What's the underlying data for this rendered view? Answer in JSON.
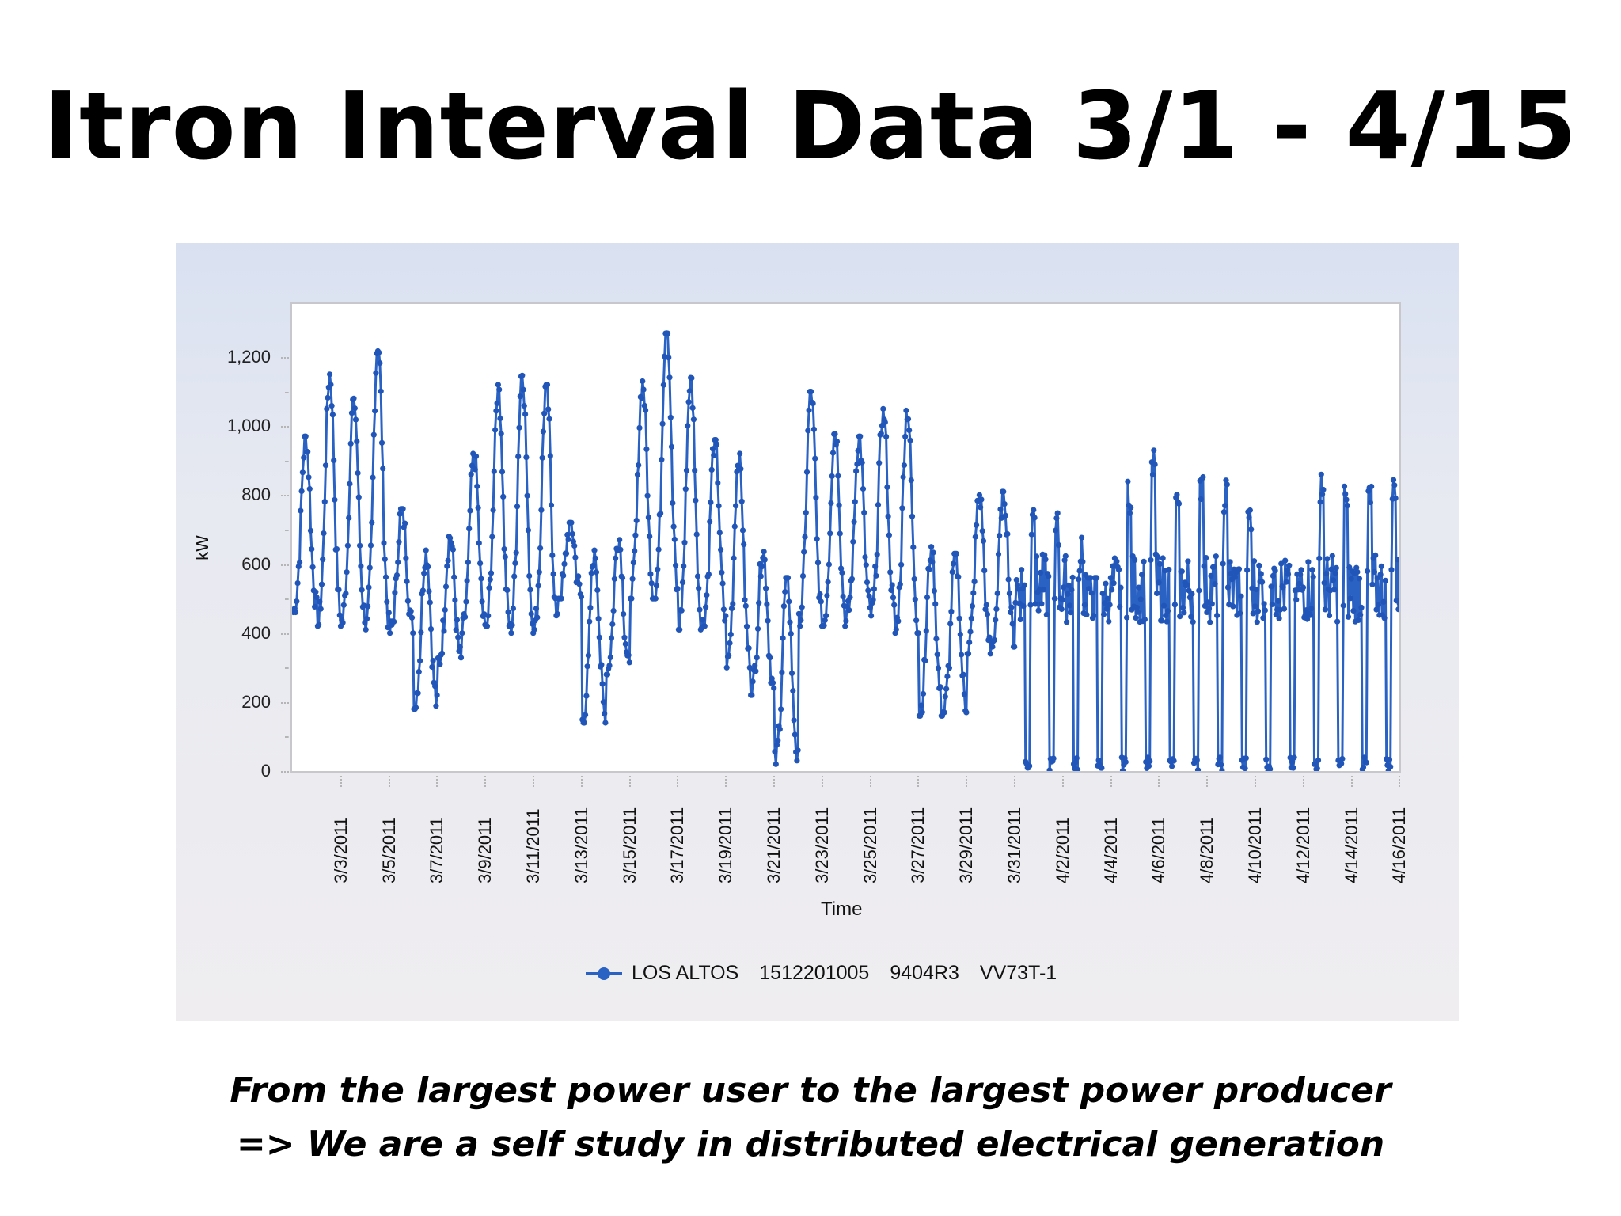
{
  "slide": {
    "title": "Itron Interval Data 3/1 - 4/15",
    "caption_line1": "From the largest power user to the largest power producer",
    "caption_line2": "=>  We are a self study in distributed electrical generation"
  },
  "colors": {
    "series": "#2a62c4",
    "plot_border": "#c8c8cc",
    "panel_top": "#d9e1f1",
    "panel_bottom": "#efedf0"
  },
  "chart_data": {
    "type": "line",
    "title": "",
    "xlabel": "Time",
    "ylabel": "kW",
    "ylim": [
      0,
      1350
    ],
    "yticks": [
      0,
      200,
      400,
      600,
      800,
      1000,
      1200
    ],
    "ytick_labels": [
      "0",
      "200",
      "400",
      "600",
      "800",
      "1,000",
      "1,200"
    ],
    "xtick_labels": [
      "3/3/2011",
      "3/5/2011",
      "3/7/2011",
      "3/9/2011",
      "3/11/2011",
      "3/13/2011",
      "3/15/2011",
      "3/17/2011",
      "3/19/2011",
      "3/21/2011",
      "3/23/2011",
      "3/25/2011",
      "3/27/2011",
      "3/29/2011",
      "3/31/2011",
      "4/2/2011",
      "4/4/2011",
      "4/6/2011",
      "4/8/2011",
      "4/10/2011",
      "4/12/2011",
      "4/14/2011",
      "4/16/2011"
    ],
    "grid": false,
    "markers": true,
    "legend_position": "bottom",
    "series": [
      {
        "name": "LOS ALTOS   1512201005   9404R3   VV73T-1",
        "note": "15-minute interval load; values below are estimated daily [min, max] kW read from the plot",
        "x": [
          "3/1",
          "3/2",
          "3/3",
          "3/4",
          "3/5",
          "3/6",
          "3/7",
          "3/8",
          "3/9",
          "3/10",
          "3/11",
          "3/12",
          "3/13",
          "3/14",
          "3/15",
          "3/16",
          "3/17",
          "3/18",
          "3/19",
          "3/20",
          "3/21",
          "3/22",
          "3/23",
          "3/24",
          "3/25",
          "3/26",
          "3/27",
          "3/28",
          "3/29",
          "3/30",
          "3/31",
          "4/1",
          "4/2",
          "4/3",
          "4/4",
          "4/5",
          "4/6",
          "4/7",
          "4/8",
          "4/9",
          "4/10",
          "4/11",
          "4/12",
          "4/13",
          "4/14",
          "4/15"
        ],
        "daily_min": [
          460,
          420,
          430,
          410,
          400,
          180,
          310,
          400,
          420,
          400,
          410,
          500,
          140,
          280,
          500,
          500,
          410,
          420,
          300,
          220,
          20,
          420,
          420,
          450,
          450,
          400,
          160,
          170,
          340,
          360,
          0,
          0,
          0,
          0,
          0,
          0,
          0,
          0,
          0,
          0,
          0,
          0,
          0,
          0,
          0,
          0
        ],
        "daily_max": [
          970,
          1150,
          1080,
          1240,
          760,
          640,
          680,
          920,
          1120,
          1160,
          1120,
          720,
          640,
          680,
          1130,
          1300,
          1140,
          960,
          920,
          640,
          560,
          1100,
          990,
          970,
          1050,
          1050,
          650,
          630,
          800,
          810,
          760,
          760,
          680,
          560,
          840,
          960,
          890,
          860,
          860,
          800,
          600,
          610,
          860,
          880,
          890,
          860
        ]
      }
    ]
  },
  "legend": {
    "parts": [
      "LOS ALTOS",
      "1512201005",
      "9404R3",
      "VV73T-1"
    ]
  }
}
